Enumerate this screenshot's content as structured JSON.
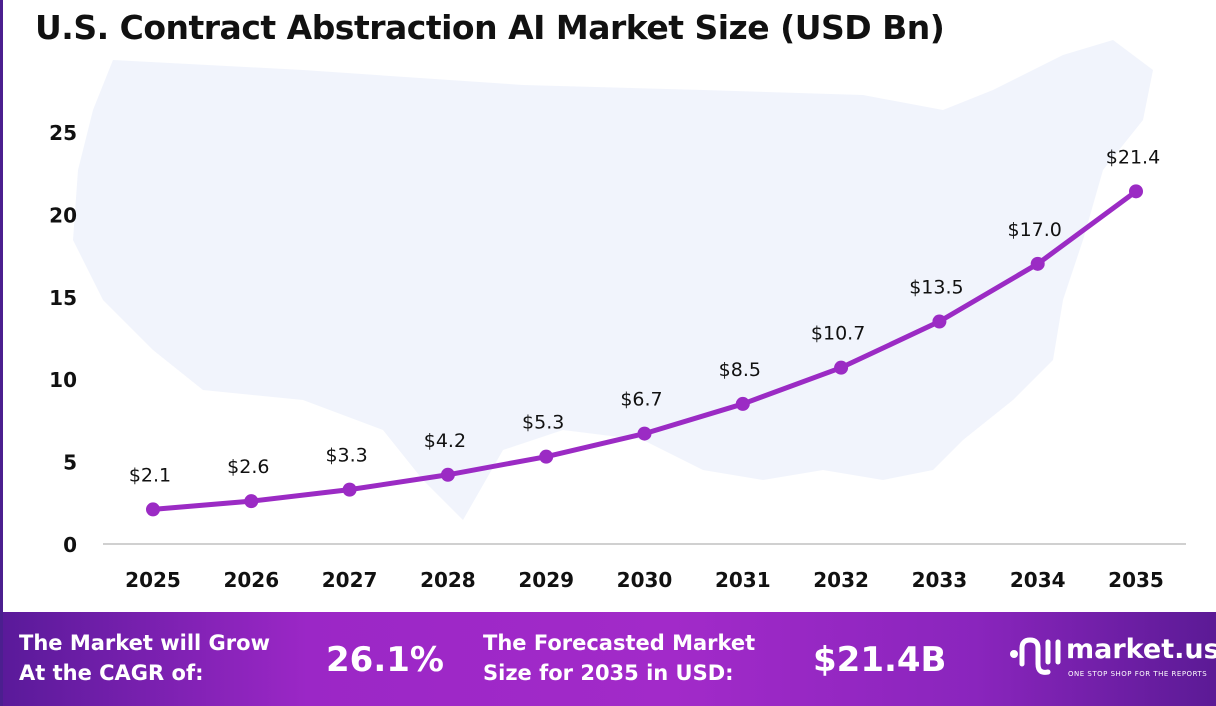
{
  "title": "U.S. Contract Abstraction AI Market Size (USD Bn)",
  "chart_data": {
    "type": "line",
    "title": "U.S. Contract Abstraction AI Market Size (USD Bn)",
    "categories": [
      "2025",
      "2026",
      "2027",
      "2028",
      "2029",
      "2030",
      "2031",
      "2032",
      "2033",
      "2034",
      "2035"
    ],
    "values": [
      2.1,
      2.6,
      3.3,
      4.2,
      5.3,
      6.7,
      8.5,
      10.7,
      13.5,
      17.0,
      21.4
    ],
    "data_labels": [
      "$2.1",
      "$2.6",
      "$3.3",
      "$4.2",
      "$5.3",
      "$6.7",
      "$8.5",
      "$10.7",
      "$13.5",
      "$17.0",
      "$21.4"
    ],
    "yticks": [
      "0",
      "5",
      "10",
      "15",
      "20",
      "25"
    ],
    "ylim": [
      0,
      25
    ],
    "grid": false,
    "line_color": "#9b2bc4"
  },
  "banner": {
    "cagr_label_1": "The Market will Grow",
    "cagr_label_2": "At the CAGR of:",
    "cagr_value": "26.1%",
    "forecast_label_1": "The Forecasted Market",
    "forecast_label_2": "Size for 2035 in USD:",
    "forecast_value": "$21.4B",
    "logo_name": "market.us",
    "logo_tagline": "ONE STOP SHOP FOR THE REPORTS"
  }
}
